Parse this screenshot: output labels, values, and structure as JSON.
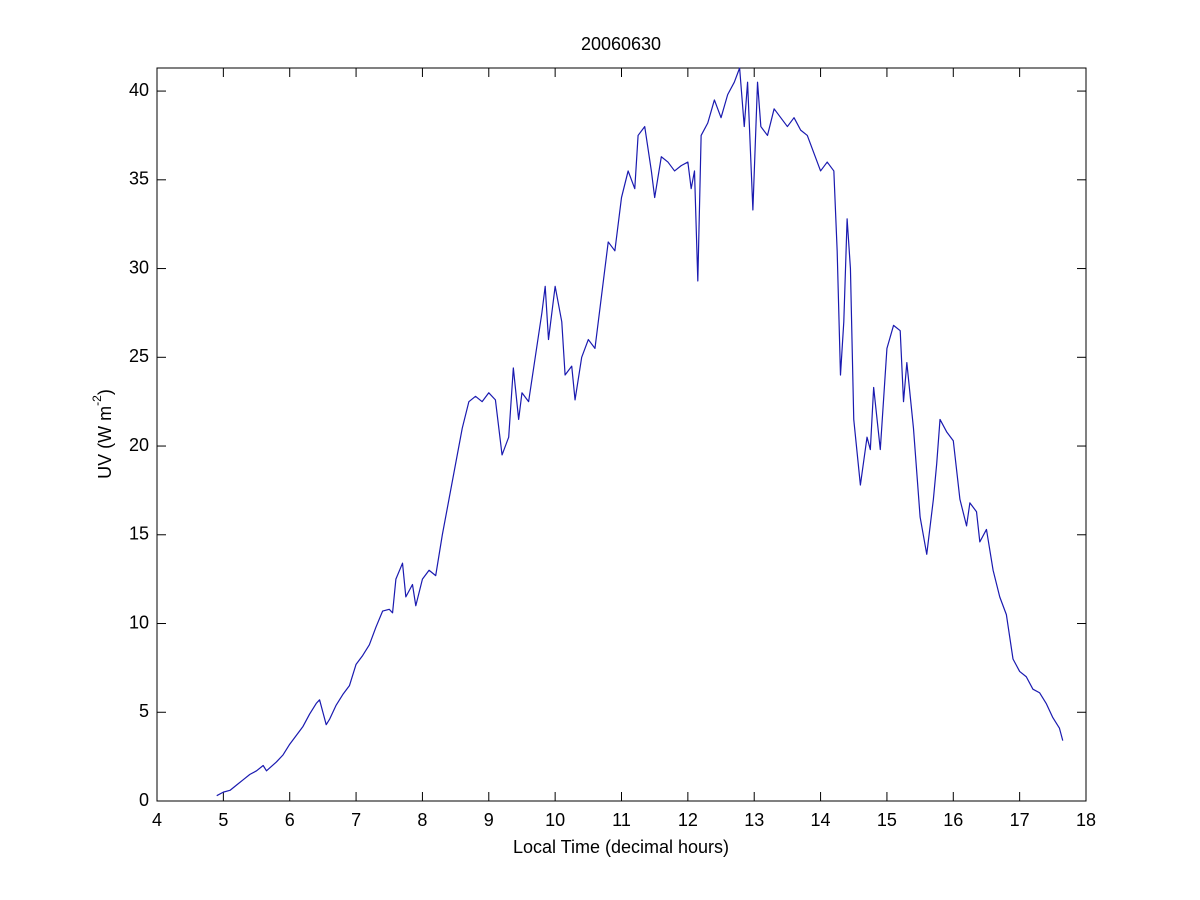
{
  "chart_data": {
    "type": "line",
    "title": "20060630",
    "xlabel": "Local Time (decimal hours)",
    "ylabel": {
      "text": "UV (W m",
      "superscript": "-2",
      "suffix": ")"
    },
    "xlim": [
      4,
      18
    ],
    "xticks": [
      4,
      5,
      6,
      7,
      8,
      9,
      10,
      11,
      12,
      13,
      14,
      15,
      16,
      17,
      18
    ],
    "ylim": [
      0,
      41.3
    ],
    "yticks": [
      0,
      5,
      10,
      15,
      20,
      25,
      30,
      35,
      40
    ],
    "grid": false,
    "series": [
      {
        "color": "#1a1ab0",
        "x": [
          4.9,
          5.0,
          5.1,
          5.2,
          5.3,
          5.4,
          5.5,
          5.6,
          5.65,
          5.8,
          5.9,
          6.0,
          6.1,
          6.2,
          6.3,
          6.4,
          6.45,
          6.5,
          6.55,
          6.6,
          6.7,
          6.8,
          6.9,
          7.0,
          7.1,
          7.2,
          7.3,
          7.4,
          7.5,
          7.55,
          7.6,
          7.7,
          7.75,
          7.85,
          7.9,
          8.0,
          8.1,
          8.2,
          8.3,
          8.4,
          8.5,
          8.6,
          8.7,
          8.8,
          8.9,
          9.0,
          9.1,
          9.2,
          9.3,
          9.37,
          9.45,
          9.5,
          9.6,
          9.7,
          9.8,
          9.85,
          9.9,
          10.0,
          10.1,
          10.15,
          10.25,
          10.3,
          10.4,
          10.5,
          10.6,
          10.7,
          10.8,
          10.9,
          11.0,
          11.1,
          11.2,
          11.25,
          11.35,
          11.45,
          11.5,
          11.6,
          11.7,
          11.8,
          11.9,
          12.0,
          12.05,
          12.1,
          12.15,
          12.2,
          12.3,
          12.4,
          12.5,
          12.6,
          12.7,
          12.78,
          12.85,
          12.9,
          12.98,
          13.05,
          13.1,
          13.2,
          13.3,
          13.4,
          13.5,
          13.6,
          13.7,
          13.8,
          13.9,
          14.0,
          14.1,
          14.2,
          14.25,
          14.3,
          14.35,
          14.4,
          14.45,
          14.5,
          14.6,
          14.7,
          14.75,
          14.8,
          14.9,
          15.0,
          15.1,
          15.2,
          15.25,
          15.3,
          15.4,
          15.5,
          15.6,
          15.7,
          15.75,
          15.8,
          15.9,
          16.0,
          16.1,
          16.2,
          16.25,
          16.35,
          16.4,
          16.5,
          16.6,
          16.7,
          16.8,
          16.9,
          17.0,
          17.1,
          17.2,
          17.3,
          17.4,
          17.5,
          17.6,
          17.65
        ],
        "values": [
          0.3,
          0.5,
          0.6,
          0.9,
          1.2,
          1.5,
          1.7,
          2.0,
          1.7,
          2.2,
          2.6,
          3.2,
          3.7,
          4.2,
          4.9,
          5.5,
          5.7,
          5.0,
          4.3,
          4.6,
          5.4,
          6.0,
          6.5,
          7.7,
          8.2,
          8.8,
          9.8,
          10.7,
          10.8,
          10.6,
          12.5,
          13.4,
          11.5,
          12.2,
          11.0,
          12.5,
          13.0,
          12.7,
          15.0,
          17.0,
          19.0,
          21.0,
          22.5,
          22.8,
          22.5,
          23.0,
          22.6,
          19.5,
          20.5,
          24.4,
          21.5,
          23.0,
          22.5,
          25.0,
          27.5,
          29.0,
          26.0,
          29.0,
          27.0,
          24.0,
          24.5,
          22.6,
          25.0,
          26.0,
          25.5,
          28.5,
          31.5,
          31.0,
          34.0,
          35.5,
          34.5,
          37.5,
          38.0,
          35.5,
          34.0,
          36.3,
          36.0,
          35.5,
          35.8,
          36.0,
          34.5,
          35.5,
          29.3,
          37.5,
          38.2,
          39.5,
          38.5,
          39.8,
          40.5,
          41.3,
          38.0,
          40.5,
          33.3,
          40.5,
          38.0,
          37.5,
          39.0,
          38.5,
          38.0,
          38.5,
          37.8,
          37.5,
          36.5,
          35.5,
          36.0,
          35.5,
          31.0,
          24.0,
          27.0,
          32.8,
          30.0,
          21.5,
          17.8,
          20.5,
          19.8,
          23.3,
          19.8,
          25.5,
          26.8,
          26.5,
          22.5,
          24.7,
          21.0,
          16.0,
          13.9,
          17.0,
          19.0,
          21.5,
          20.8,
          20.3,
          17.0,
          15.5,
          16.8,
          16.3,
          14.6,
          15.3,
          13.0,
          11.5,
          10.5,
          8.0,
          7.3,
          7.0,
          6.3,
          6.1,
          5.5,
          4.7,
          4.1,
          3.4
        ]
      }
    ]
  }
}
